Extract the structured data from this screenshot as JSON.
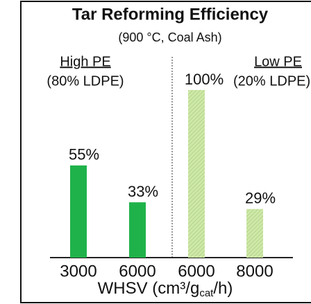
{
  "chart_data": {
    "type": "bar",
    "title": "Tar Reforming Efficiency",
    "subtitle": "(900 °C, Coal Ash)",
    "annotations": [
      "High PE",
      "(80% LDPE)",
      "Low PE",
      "(20% LDPE)"
    ],
    "xlabel_parts": [
      "WHSV (cm³/g",
      "cat",
      "/h)"
    ],
    "categories": [
      "3000",
      "6000",
      "6000",
      "8000"
    ],
    "values": [
      55,
      33,
      100,
      29
    ],
    "value_labels": [
      "55%",
      "33%",
      "100%",
      "29%"
    ],
    "colors": [
      "#1fb24a",
      "#1fb24a",
      "#cfe8a8",
      "#cfe8a8"
    ],
    "hatched": [
      false,
      false,
      true,
      true
    ],
    "annotation_color": "#3dae6a",
    "ylim": [
      0,
      100
    ]
  }
}
